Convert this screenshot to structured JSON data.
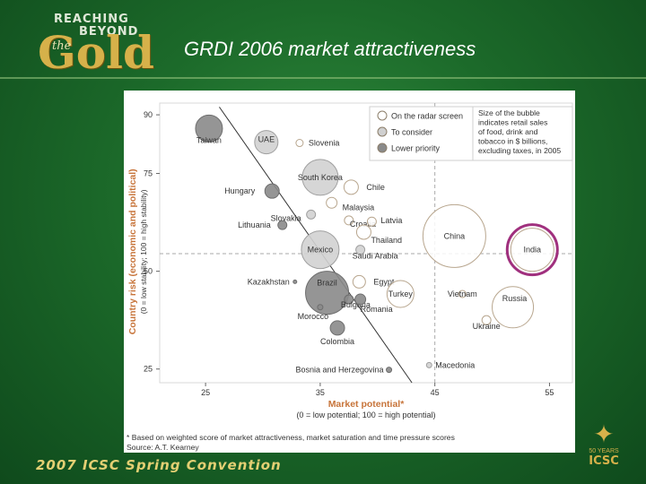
{
  "slide": {
    "title": "GRDI 2006 market attractiveness",
    "footer": "2007 ICSC Spring Convention",
    "logo": {
      "line1": "REACHING",
      "line2": "BEYOND",
      "the": "the",
      "word": "Gold"
    },
    "icsc": {
      "years": "50 YEARS",
      "name": "ICSC"
    }
  },
  "chart_data": {
    "type": "scatter",
    "xlabel": "Market potential*",
    "xsublabel": "(0 = low potential; 100 = high potential)",
    "ylabel": "Country risk (economic and political)",
    "ysublabel": "(0 = low stability; 100 = high stability)",
    "xlim": [
      21,
      57
    ],
    "ylim": [
      21.5,
      93
    ],
    "xticks": [
      25,
      35,
      45,
      55
    ],
    "yticks": [
      25,
      50,
      75,
      90
    ],
    "legend": {
      "items": [
        {
          "label": "On the radar screen",
          "color": "#ffffff"
        },
        {
          "label": "To consider",
          "color": "#d0d0d0"
        },
        {
          "label": "Lower priority",
          "color": "#8a8a8a"
        }
      ],
      "size_note": "Size of the bubble indicates retail sales of food, drink and tobacco in $ billions, excluding taxes, in 2005"
    },
    "points": [
      {
        "name": "Taiwan",
        "x": 25.3,
        "y": 86.5,
        "size": 15,
        "group": "lower"
      },
      {
        "name": "UAE",
        "x": 30.3,
        "y": 83,
        "size": 13,
        "group": "consider"
      },
      {
        "name": "Slovenia",
        "x": 33.2,
        "y": 82.8,
        "size": 4,
        "group": "radar"
      },
      {
        "name": "South Korea",
        "x": 35,
        "y": 74,
        "size": 20,
        "group": "consider"
      },
      {
        "name": "Chile",
        "x": 37.7,
        "y": 71.5,
        "size": 8,
        "group": "radar"
      },
      {
        "name": "Hungary",
        "x": 30.8,
        "y": 70.5,
        "size": 8,
        "group": "lower"
      },
      {
        "name": "Slovakia",
        "x": 34.2,
        "y": 64.5,
        "size": 5,
        "group": "consider"
      },
      {
        "name": "Malaysia",
        "x": 36,
        "y": 67.5,
        "size": 6,
        "group": "radar"
      },
      {
        "name": "Croatia",
        "x": 37.5,
        "y": 63,
        "size": 5,
        "group": "radar"
      },
      {
        "name": "Latvia",
        "x": 39.5,
        "y": 62.7,
        "size": 5,
        "group": "radar"
      },
      {
        "name": "Lithuania",
        "x": 31.7,
        "y": 61.8,
        "size": 5,
        "group": "lower"
      },
      {
        "name": "China",
        "x": 46.7,
        "y": 59,
        "size": 35,
        "group": "radar"
      },
      {
        "name": "Mexico",
        "x": 35,
        "y": 55.5,
        "size": 21,
        "group": "consider"
      },
      {
        "name": "Thailand",
        "x": 38.8,
        "y": 60,
        "size": 8,
        "group": "radar"
      },
      {
        "name": "India",
        "x": 53.5,
        "y": 55.5,
        "size": 24,
        "group": "radar"
      },
      {
        "name": "Saudi Arabia",
        "x": 38.5,
        "y": 55.5,
        "size": 5,
        "group": "consider"
      },
      {
        "name": "Kazakhstan",
        "x": 32.8,
        "y": 47.3,
        "size": 2,
        "group": "lower"
      },
      {
        "name": "Brazil",
        "x": 35.6,
        "y": 44.5,
        "size": 24,
        "group": "lower"
      },
      {
        "name": "Egypt",
        "x": 38.4,
        "y": 47.3,
        "size": 7,
        "group": "radar"
      },
      {
        "name": "Turkey",
        "x": 42,
        "y": 44.2,
        "size": 15,
        "group": "radar"
      },
      {
        "name": "Bulgaria",
        "x": 37.5,
        "y": 42.8,
        "size": 5,
        "group": "lower"
      },
      {
        "name": "Romania",
        "x": 38.5,
        "y": 42.8,
        "size": 6,
        "group": "lower"
      },
      {
        "name": "Vietnam",
        "x": 47.4,
        "y": 44.2,
        "size": 4,
        "group": "radar"
      },
      {
        "name": "Russia",
        "x": 51.8,
        "y": 40.8,
        "size": 23,
        "group": "radar"
      },
      {
        "name": "Morocco",
        "x": 35,
        "y": 40.8,
        "size": 3,
        "group": "lower"
      },
      {
        "name": "Ukraine",
        "x": 49.5,
        "y": 37.5,
        "size": 5,
        "group": "radar"
      },
      {
        "name": "Colombia",
        "x": 36.5,
        "y": 35.5,
        "size": 8,
        "group": "lower"
      },
      {
        "name": "Bosnia and Herzegovina",
        "x": 41,
        "y": 24.8,
        "size": 3,
        "group": "lower"
      },
      {
        "name": "Macedonia",
        "x": 44.5,
        "y": 26,
        "size": 3,
        "group": "consider"
      }
    ],
    "highlight": "India",
    "footnote": "* Based on weighted score of market attractiveness, market saturation and time pressure scores",
    "source": "Source: A.T. Kearney"
  }
}
